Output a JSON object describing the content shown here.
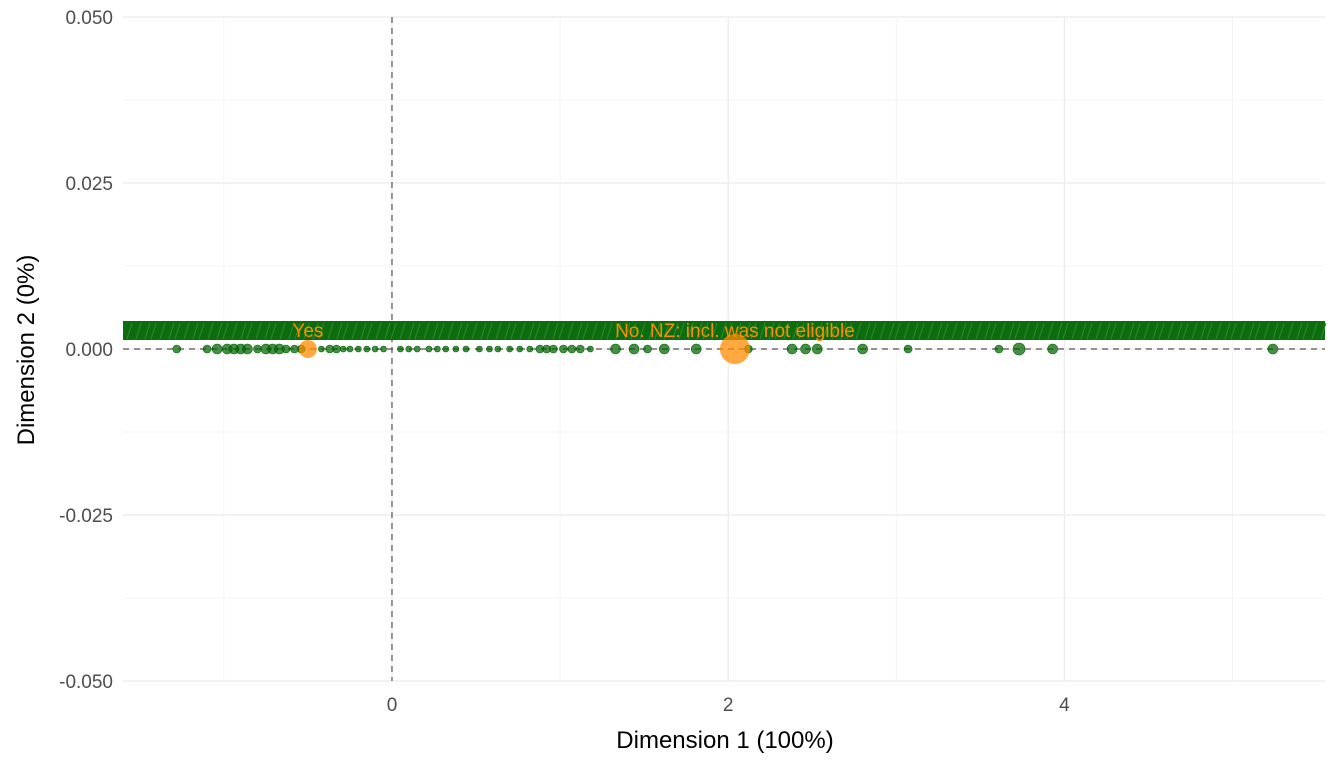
{
  "colors": {
    "background": "#ffffff",
    "grid_major": "#ebebeb",
    "grid_minor": "#f4f4f4",
    "zero_line": "#555555",
    "variable_points": "#006400",
    "supplementary_points": "#ff8c00",
    "tick_text": "#4d4d4d",
    "axis_title_text": "#000000"
  },
  "chart_data": {
    "type": "scatter",
    "title": "",
    "xlabel": "Dimension 1 (100%)",
    "ylabel": "Dimension 2 (0%)",
    "xlim": [
      -1.6,
      5.55
    ],
    "ylim": [
      -0.05,
      0.05
    ],
    "x_ticks": [
      {
        "value": 0,
        "label": "0"
      },
      {
        "value": 2,
        "label": "2"
      },
      {
        "value": 4,
        "label": "4"
      }
    ],
    "y_ticks": [
      {
        "value": 0.05,
        "label": "0.050"
      },
      {
        "value": 0.025,
        "label": "0.025"
      },
      {
        "value": 0.0,
        "label": "0.000"
      },
      {
        "value": -0.025,
        "label": "-0.025"
      },
      {
        "value": -0.05,
        "label": "-0.050"
      }
    ],
    "grid": true,
    "reference_lines": {
      "x": 0,
      "y": 0,
      "style": "dashed"
    },
    "series": [
      {
        "role": "variables",
        "color": "#006400",
        "points": [
          {
            "x": -1.28,
            "y": 0,
            "size": 4
          },
          {
            "x": -1.1,
            "y": 0,
            "size": 4
          },
          {
            "x": -1.04,
            "y": 0,
            "size": 5
          },
          {
            "x": -0.98,
            "y": 0,
            "size": 5
          },
          {
            "x": -0.94,
            "y": 0,
            "size": 5
          },
          {
            "x": -0.9,
            "y": 0,
            "size": 5
          },
          {
            "x": -0.86,
            "y": 0,
            "size": 5
          },
          {
            "x": -0.8,
            "y": 0,
            "size": 4
          },
          {
            "x": -0.75,
            "y": 0,
            "size": 5
          },
          {
            "x": -0.71,
            "y": 0,
            "size": 5
          },
          {
            "x": -0.67,
            "y": 0,
            "size": 5
          },
          {
            "x": -0.63,
            "y": 0,
            "size": 4
          },
          {
            "x": -0.58,
            "y": 0,
            "size": 4
          },
          {
            "x": -0.54,
            "y": 0,
            "size": 4
          },
          {
            "x": -0.42,
            "y": 0,
            "size": 3
          },
          {
            "x": -0.37,
            "y": 0,
            "size": 4
          },
          {
            "x": -0.33,
            "y": 0,
            "size": 4
          },
          {
            "x": -0.29,
            "y": 0,
            "size": 3
          },
          {
            "x": -0.25,
            "y": 0,
            "size": 3
          },
          {
            "x": -0.2,
            "y": 0,
            "size": 3
          },
          {
            "x": -0.15,
            "y": 0,
            "size": 3
          },
          {
            "x": -0.1,
            "y": 0,
            "size": 3
          },
          {
            "x": -0.05,
            "y": 0,
            "size": 3
          },
          {
            "x": 0.05,
            "y": 0,
            "size": 3
          },
          {
            "x": 0.1,
            "y": 0,
            "size": 3
          },
          {
            "x": 0.15,
            "y": 0,
            "size": 3
          },
          {
            "x": 0.22,
            "y": 0,
            "size": 3
          },
          {
            "x": 0.27,
            "y": 0,
            "size": 3
          },
          {
            "x": 0.32,
            "y": 0,
            "size": 3
          },
          {
            "x": 0.38,
            "y": 0,
            "size": 3
          },
          {
            "x": 0.44,
            "y": 0,
            "size": 3
          },
          {
            "x": 0.52,
            "y": 0,
            "size": 3
          },
          {
            "x": 0.58,
            "y": 0,
            "size": 3
          },
          {
            "x": 0.63,
            "y": 0,
            "size": 3
          },
          {
            "x": 0.7,
            "y": 0,
            "size": 3
          },
          {
            "x": 0.76,
            "y": 0,
            "size": 3
          },
          {
            "x": 0.82,
            "y": 0,
            "size": 3
          },
          {
            "x": 0.88,
            "y": 0,
            "size": 4
          },
          {
            "x": 0.92,
            "y": 0,
            "size": 4
          },
          {
            "x": 0.96,
            "y": 0,
            "size": 4
          },
          {
            "x": 1.02,
            "y": 0,
            "size": 4
          },
          {
            "x": 1.07,
            "y": 0,
            "size": 4
          },
          {
            "x": 1.12,
            "y": 0,
            "size": 4
          },
          {
            "x": 1.18,
            "y": 0,
            "size": 3
          },
          {
            "x": 1.33,
            "y": 0,
            "size": 5
          },
          {
            "x": 1.44,
            "y": 0,
            "size": 5
          },
          {
            "x": 1.52,
            "y": 0,
            "size": 4
          },
          {
            "x": 1.62,
            "y": 0,
            "size": 5
          },
          {
            "x": 1.81,
            "y": 0,
            "size": 5
          },
          {
            "x": 2.12,
            "y": 0,
            "size": 4
          },
          {
            "x": 2.38,
            "y": 0,
            "size": 5
          },
          {
            "x": 2.46,
            "y": 0,
            "size": 5
          },
          {
            "x": 2.53,
            "y": 0,
            "size": 5
          },
          {
            "x": 2.8,
            "y": 0,
            "size": 5
          },
          {
            "x": 3.07,
            "y": 0,
            "size": 4
          },
          {
            "x": 3.61,
            "y": 0,
            "size": 4
          },
          {
            "x": 3.73,
            "y": 0,
            "size": 6
          },
          {
            "x": 3.93,
            "y": 0,
            "size": 5
          },
          {
            "x": 5.24,
            "y": 0,
            "size": 5
          }
        ]
      },
      {
        "role": "supplementary",
        "color": "#ff8c00",
        "points": [
          {
            "x": -0.5,
            "y": 0,
            "size": 9,
            "label": "Yes"
          },
          {
            "x": 2.04,
            "y": 0,
            "size": 15,
            "label": "No. NZ: incl. was not eligible"
          }
        ]
      }
    ],
    "label_strip": {
      "note_text": "overplotted category labels along y = 0",
      "color": "#006400"
    }
  }
}
